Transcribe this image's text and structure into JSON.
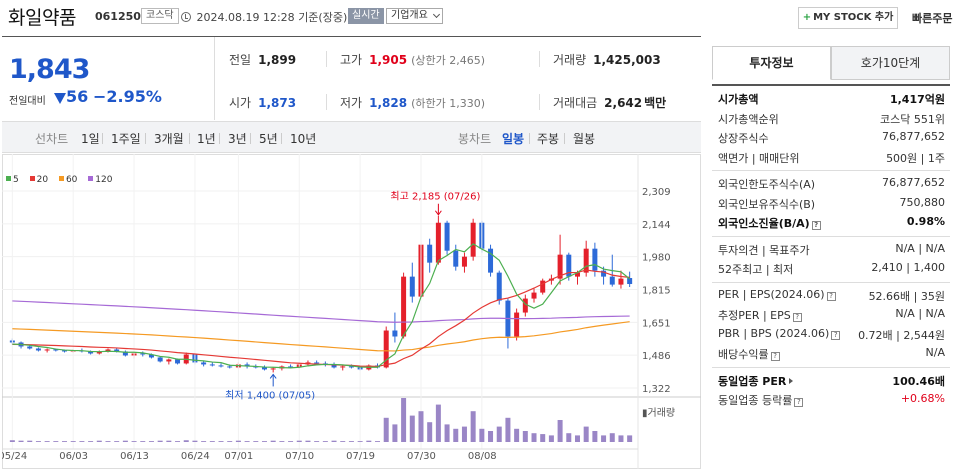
{
  "header": {
    "stock_name": "화일약품",
    "stock_code": "061250",
    "market": "코스닥",
    "datetime": "2024.08.19 12:28",
    "basis": "기준(장중)",
    "realtime": "실시간",
    "company_overview": "기업개요",
    "my_stock_add": "MY STOCK 추가",
    "quick_order": "빠른주문"
  },
  "summary": {
    "current_price": "1,843",
    "diff_label": "전일대비",
    "diff_value": "56",
    "diff_percent": "−2.95%",
    "prev_close_label": "전일",
    "prev_close": "1,899",
    "high_label": "고가",
    "high": "1,905",
    "upper_limit": "(상한가 2,465)",
    "volume_label": "거래량",
    "volume": "1,425,003",
    "open_label": "시가",
    "open": "1,873",
    "low_label": "저가",
    "low": "1,828",
    "lower_limit": "(하한가 1,330)",
    "amount_label": "거래대금",
    "amount": "2,642",
    "amount_unit": "백만"
  },
  "toolbar": {
    "line_chart": "선차트",
    "periods": [
      "1일",
      "1주일",
      "3개월",
      "1년",
      "3년",
      "5년",
      "10년"
    ],
    "candle_chart": "봉차트",
    "candles": [
      "일봉",
      "주봉",
      "월봉"
    ]
  },
  "chart_data": {
    "type": "candlestick",
    "legend": [
      {
        "name": "5",
        "color": "#4caf50"
      },
      {
        "name": "20",
        "color": "#e53935"
      },
      {
        "name": "60",
        "color": "#f59a23"
      },
      {
        "name": "120",
        "color": "#a66ad6"
      }
    ],
    "yticks": [
      "2,309",
      "2,144",
      "1,980",
      "1,815",
      "1,651",
      "1,486",
      "1,322"
    ],
    "ylim": [
      1322,
      2309
    ],
    "xticks": [
      "05/24",
      "06/03",
      "06/13",
      "06/24",
      "07/01",
      "07/10",
      "07/19",
      "07/30",
      "08/08"
    ],
    "high_note": "최고 2,185 (07/26)",
    "low_note": "최저 1,400 (07/05)",
    "volume_label": "거래량",
    "candles": [
      [
        1560,
        1570,
        1540,
        1550
      ],
      [
        1550,
        1555,
        1520,
        1530
      ],
      [
        1530,
        1540,
        1515,
        1520
      ],
      [
        1520,
        1525,
        1505,
        1510
      ],
      [
        1510,
        1520,
        1500,
        1515
      ],
      [
        1515,
        1520,
        1505,
        1510
      ],
      [
        1510,
        1515,
        1500,
        1505
      ],
      [
        1505,
        1515,
        1500,
        1510
      ],
      [
        1510,
        1520,
        1500,
        1505
      ],
      [
        1505,
        1510,
        1490,
        1495
      ],
      [
        1495,
        1510,
        1490,
        1505
      ],
      [
        1505,
        1520,
        1500,
        1515
      ],
      [
        1515,
        1520,
        1500,
        1505
      ],
      [
        1505,
        1510,
        1480,
        1485
      ],
      [
        1485,
        1500,
        1470,
        1495
      ],
      [
        1495,
        1505,
        1480,
        1490
      ],
      [
        1490,
        1495,
        1470,
        1475
      ],
      [
        1475,
        1480,
        1450,
        1455
      ],
      [
        1455,
        1470,
        1440,
        1465
      ],
      [
        1465,
        1470,
        1440,
        1445
      ],
      [
        1445,
        1500,
        1440,
        1490
      ],
      [
        1490,
        1495,
        1440,
        1450
      ],
      [
        1450,
        1460,
        1430,
        1440
      ],
      [
        1440,
        1450,
        1430,
        1435
      ],
      [
        1435,
        1445,
        1425,
        1430
      ],
      [
        1430,
        1440,
        1420,
        1425
      ],
      [
        1425,
        1450,
        1420,
        1440
      ],
      [
        1440,
        1450,
        1420,
        1430
      ],
      [
        1430,
        1440,
        1420,
        1425
      ],
      [
        1425,
        1435,
        1410,
        1415
      ],
      [
        1415,
        1425,
        1400,
        1420
      ],
      [
        1420,
        1435,
        1410,
        1430
      ],
      [
        1430,
        1440,
        1420,
        1425
      ],
      [
        1425,
        1445,
        1420,
        1440
      ],
      [
        1440,
        1460,
        1430,
        1450
      ],
      [
        1450,
        1460,
        1440,
        1445
      ],
      [
        1445,
        1455,
        1430,
        1440
      ],
      [
        1440,
        1450,
        1420,
        1425
      ],
      [
        1425,
        1435,
        1410,
        1430
      ],
      [
        1430,
        1440,
        1420,
        1425
      ],
      [
        1425,
        1430,
        1410,
        1415
      ],
      [
        1415,
        1440,
        1410,
        1435
      ],
      [
        1435,
        1445,
        1420,
        1425
      ],
      [
        1425,
        1630,
        1420,
        1610
      ],
      [
        1610,
        1700,
        1550,
        1580
      ],
      [
        1580,
        1900,
        1570,
        1880
      ],
      [
        1880,
        1950,
        1750,
        1780
      ],
      [
        1780,
        2060,
        1770,
        2040
      ],
      [
        2040,
        2070,
        1900,
        1950
      ],
      [
        1950,
        2185,
        1940,
        2150
      ],
      [
        2150,
        2160,
        1990,
        2010
      ],
      [
        2010,
        2040,
        1910,
        1930
      ],
      [
        1930,
        2000,
        1900,
        1980
      ],
      [
        1980,
        2170,
        1960,
        2150
      ],
      [
        2150,
        2160,
        2000,
        2020
      ],
      [
        2020,
        2040,
        1880,
        1900
      ],
      [
        1900,
        1910,
        1740,
        1760
      ],
      [
        1760,
        1770,
        1520,
        1580
      ],
      [
        1580,
        1720,
        1560,
        1700
      ],
      [
        1700,
        1790,
        1680,
        1770
      ],
      [
        1770,
        1820,
        1750,
        1800
      ],
      [
        1800,
        1870,
        1790,
        1860
      ],
      [
        1860,
        1890,
        1840,
        1870
      ],
      [
        1870,
        2090,
        1840,
        1990
      ],
      [
        1990,
        2000,
        1860,
        1880
      ],
      [
        1880,
        1910,
        1840,
        1900
      ],
      [
        1900,
        2060,
        1880,
        2020
      ],
      [
        2020,
        2050,
        1880,
        1910
      ],
      [
        1910,
        1930,
        1840,
        1880
      ],
      [
        1880,
        1990,
        1830,
        1840
      ],
      [
        1840,
        1910,
        1820,
        1870
      ],
      [
        1873,
        1905,
        1828,
        1843
      ]
    ],
    "volumes": [
      4,
      3,
      3,
      2,
      2,
      2,
      2,
      2,
      2,
      2,
      3,
      2,
      2,
      3,
      2,
      2,
      2,
      3,
      3,
      2,
      4,
      3,
      2,
      2,
      2,
      2,
      3,
      2,
      2,
      2,
      3,
      2,
      2,
      3,
      3,
      2,
      2,
      3,
      2,
      2,
      2,
      3,
      2,
      55,
      40,
      100,
      60,
      70,
      45,
      85,
      40,
      30,
      35,
      70,
      30,
      25,
      35,
      55,
      30,
      25,
      20,
      18,
      15,
      50,
      20,
      15,
      35,
      25,
      15,
      20,
      15,
      15
    ]
  },
  "side": {
    "tab_active": "투자정보",
    "tab_other": "호가10단계",
    "group1": [
      {
        "l": "시가총액",
        "r": "1,417억원",
        "bold": true
      },
      {
        "l": "시가총액순위",
        "r": "코스닥 551위"
      },
      {
        "l": "상장주식수",
        "r": "76,877,652"
      },
      {
        "l": "액면가 | 매매단위",
        "r": "500원 | 1주"
      }
    ],
    "group2": [
      {
        "l": "외국인한도주식수(A)",
        "r": "76,877,652"
      },
      {
        "l": "외국인보유주식수(B)",
        "r": "750,880"
      },
      {
        "l": "외국인소진율(B/A)",
        "r": "0.98%",
        "bold": true,
        "q": true
      }
    ],
    "group3": [
      {
        "l": "투자의견 | 목표주가",
        "r": "N/A | N/A"
      },
      {
        "l": "52주최고 | 최저",
        "r": "2,410 | 1,400"
      }
    ],
    "group4": [
      {
        "l": "PER | EPS(2024.06)",
        "r": "52.66배 | 35원",
        "q": true
      },
      {
        "l": "추정PER | EPS",
        "r": "N/A | N/A",
        "q": true
      },
      {
        "l": "PBR | BPS (2024.06)",
        "r": "0.72배 | 2,544원",
        "q": true
      },
      {
        "l": "배당수익률",
        "r": "N/A",
        "q": true
      }
    ],
    "group5": [
      {
        "l": "동일업종 PER",
        "r": "100.46배",
        "bold": true,
        "arrow": true
      },
      {
        "l": "동일업종 등락률",
        "r": "+0.68%",
        "up": true,
        "q": true
      }
    ]
  }
}
